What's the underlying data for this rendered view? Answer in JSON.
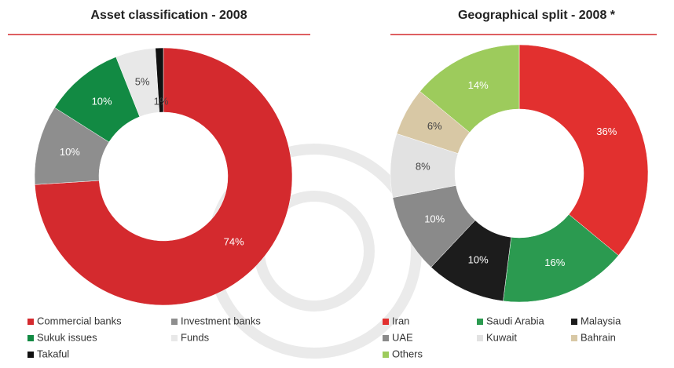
{
  "chart_data": [
    {
      "type": "pie",
      "title": "Asset classification - 2008",
      "categories": [
        "Commercial banks",
        "Investment banks",
        "Sukuk issues",
        "Funds",
        "Takaful"
      ],
      "values": [
        74,
        10,
        10,
        5,
        1
      ],
      "value_labels": [
        "74%",
        "10%",
        "10%",
        "5%",
        "1%"
      ],
      "colors": [
        "#d42a2e",
        "#8e8e8e",
        "#128a43",
        "#e8e8e8",
        "#111111"
      ]
    },
    {
      "type": "pie",
      "title": "Geographical split - 2008 *",
      "categories": [
        "Iran",
        "Saudi Arabia",
        "Malaysia",
        "UAE",
        "Kuwait",
        "Bahrain",
        "Others"
      ],
      "values": [
        36,
        16,
        10,
        10,
        8,
        6,
        14
      ],
      "value_labels": [
        "36%",
        "16%",
        "10%",
        "10%",
        "8%",
        "6%",
        "14%"
      ],
      "colors": [
        "#e2302f",
        "#2b9a50",
        "#1c1c1c",
        "#8a8a8a",
        "#e2e2e2",
        "#d8c8a5",
        "#9dcb5c"
      ]
    }
  ]
}
